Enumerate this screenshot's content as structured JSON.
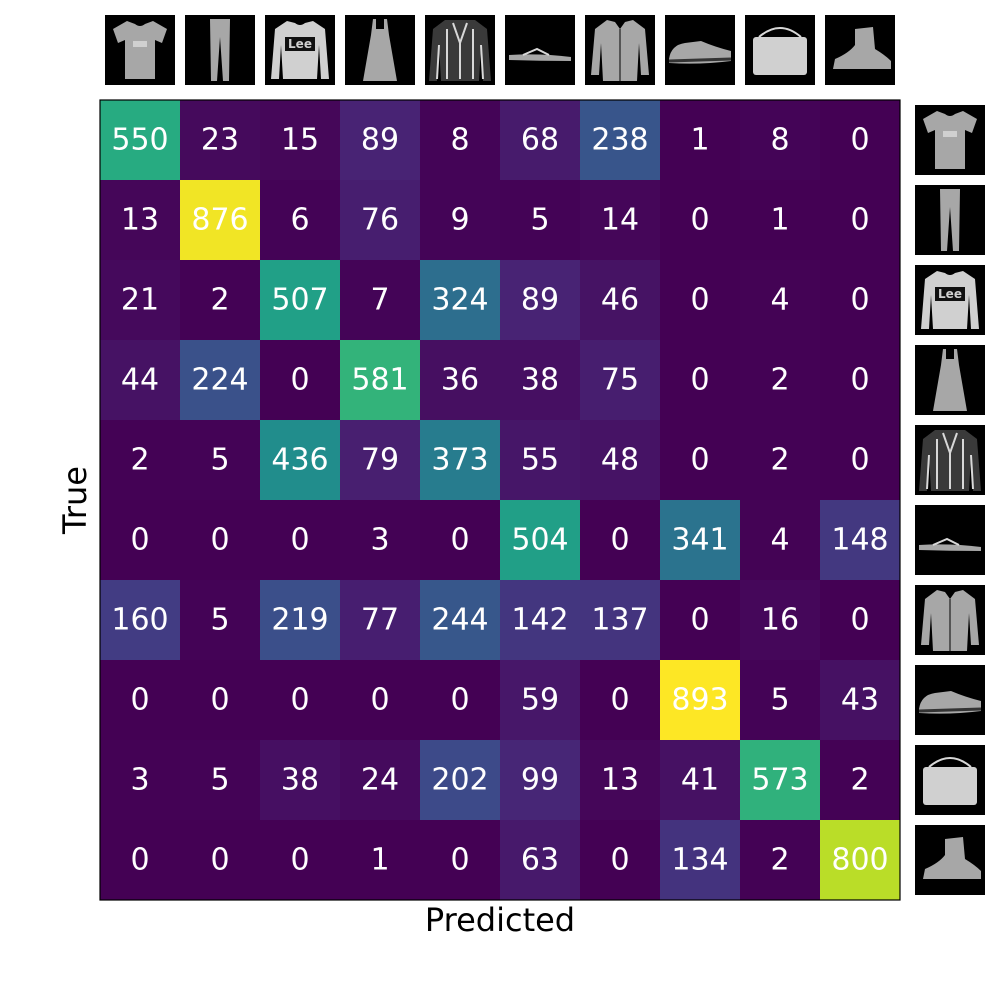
{
  "chart_data": {
    "type": "heatmap",
    "xlabel": "Predicted",
    "ylabel": "True",
    "rows": 10,
    "cols": 10,
    "value_range": [
      0,
      893
    ],
    "colormap": "viridis",
    "class_icons": [
      "tshirt-icon",
      "trouser-icon",
      "pullover-icon",
      "dress-icon",
      "coat-icon",
      "sandal-icon",
      "shirt-icon",
      "sneaker-icon",
      "bag-icon",
      "ankle-boot-icon"
    ],
    "matrix": [
      [
        550,
        23,
        15,
        89,
        8,
        68,
        238,
        1,
        8,
        0
      ],
      [
        13,
        876,
        6,
        76,
        9,
        5,
        14,
        0,
        1,
        0
      ],
      [
        21,
        2,
        507,
        7,
        324,
        89,
        46,
        0,
        4,
        0
      ],
      [
        44,
        224,
        0,
        581,
        36,
        38,
        75,
        0,
        2,
        0
      ],
      [
        2,
        5,
        436,
        79,
        373,
        55,
        48,
        0,
        2,
        0
      ],
      [
        0,
        0,
        0,
        3,
        0,
        504,
        0,
        341,
        4,
        148
      ],
      [
        160,
        5,
        219,
        77,
        244,
        142,
        137,
        0,
        16,
        0
      ],
      [
        0,
        0,
        0,
        0,
        0,
        59,
        0,
        893,
        5,
        43
      ],
      [
        3,
        5,
        38,
        24,
        202,
        99,
        13,
        41,
        573,
        2
      ],
      [
        0,
        0,
        0,
        1,
        0,
        63,
        0,
        134,
        2,
        800
      ]
    ]
  }
}
